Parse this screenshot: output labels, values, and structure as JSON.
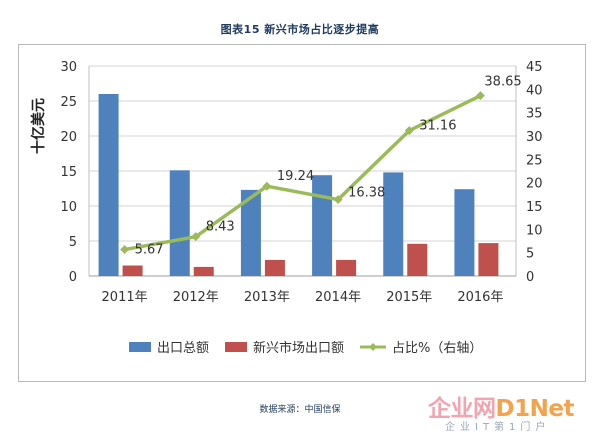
{
  "title": "图表15 新兴市场占比逐步提高",
  "source": "数据来源：中国信保",
  "watermark": {
    "top_cn": "企业网",
    "top_en": "D1Net",
    "bottom": "企业IT第1门户"
  },
  "chart_data": {
    "type": "bar",
    "title": "图表15 新兴市场占比逐步提高",
    "ylabel": "十亿美元",
    "categories": [
      "2011年",
      "2012年",
      "2013年",
      "2014年",
      "2015年",
      "2016年"
    ],
    "ylim": [
      0,
      30
    ],
    "yticks": [
      "0",
      "5",
      "10",
      "15",
      "20",
      "25",
      "30"
    ],
    "y2lim": [
      0,
      45
    ],
    "y2ticks": [
      "0",
      "5",
      "10",
      "15",
      "20",
      "25",
      "30",
      "35",
      "40",
      "45"
    ],
    "grid": true,
    "legend_position": "bottom",
    "series": [
      {
        "name": "出口总额",
        "type": "bar",
        "axis": "left",
        "color": "#4f81bd",
        "values": [
          26.0,
          15.1,
          12.3,
          14.4,
          14.8,
          12.4
        ]
      },
      {
        "name": "新兴市场出口额",
        "type": "bar",
        "axis": "left",
        "color": "#c0504d",
        "values": [
          1.5,
          1.3,
          2.3,
          2.3,
          4.6,
          4.7
        ]
      },
      {
        "name": "占比%（右轴）",
        "type": "line",
        "axis": "right",
        "color": "#9bbb59",
        "values": [
          5.67,
          8.43,
          19.24,
          16.38,
          31.16,
          38.65
        ],
        "labels": [
          "5.67",
          "8.43",
          "19.24",
          "16.38",
          "31.16",
          "38.65"
        ]
      }
    ]
  }
}
